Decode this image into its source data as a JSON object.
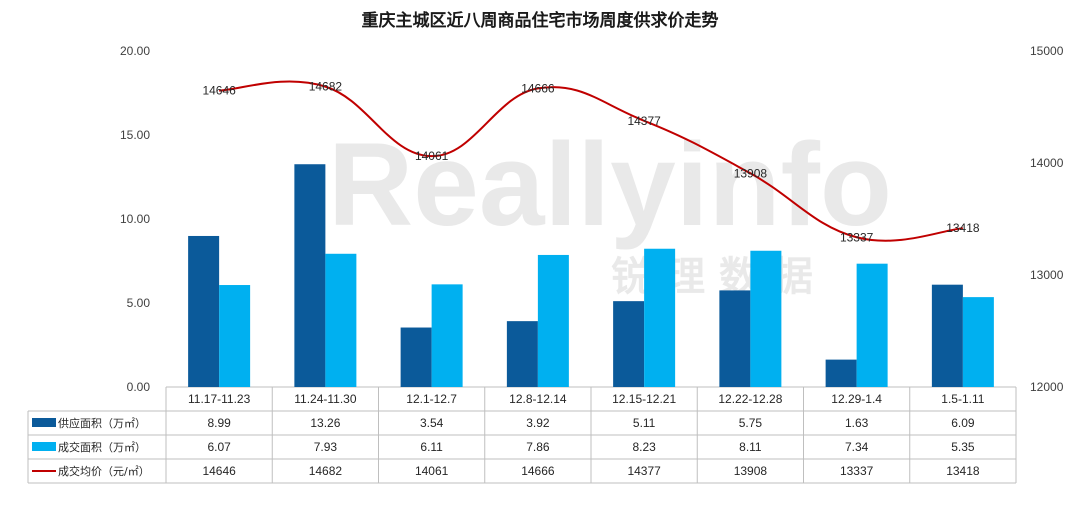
{
  "chart_data": {
    "type": "bar",
    "title": "重庆主城区近八周商品住宅市场周度供求价走势",
    "categories": [
      "11.17-11.23",
      "11.24-11.30",
      "12.1-12.7",
      "12.8-12.14",
      "12.15-12.21",
      "12.22-12.28",
      "12.29-1.4",
      "1.5-1.11"
    ],
    "series": [
      {
        "name": "供应面积（万㎡）",
        "type": "bar",
        "axis": "left",
        "color": "#0b5a9a",
        "values": [
          8.99,
          13.26,
          3.54,
          3.92,
          5.11,
          5.75,
          1.63,
          6.09
        ],
        "display": [
          "8.99",
          "13.26",
          "3.54",
          "3.92",
          "5.11",
          "5.75",
          "1.63",
          "6.09"
        ]
      },
      {
        "name": "成交面积（万㎡）",
        "type": "bar",
        "axis": "left",
        "color": "#00b0f0",
        "values": [
          6.07,
          7.93,
          6.11,
          7.86,
          8.23,
          8.11,
          7.34,
          5.35
        ],
        "display": [
          "6.07",
          "7.93",
          "6.11",
          "7.86",
          "8.23",
          "8.11",
          "7.34",
          "5.35"
        ]
      },
      {
        "name": "成交均价（元/㎡）",
        "type": "line",
        "axis": "right",
        "color": "#c00000",
        "values": [
          14646,
          14682,
          14061,
          14666,
          14377,
          13908,
          13337,
          13418
        ],
        "display": [
          "14646",
          "14682",
          "14061",
          "14666",
          "14377",
          "13908",
          "13337",
          "13418"
        ]
      }
    ],
    "y_left": {
      "min": 0,
      "max": 20,
      "ticks": [
        "0.00",
        "5.00",
        "10.00",
        "15.00",
        "20.00"
      ]
    },
    "y_right": {
      "min": 12000,
      "max": 15000,
      "ticks": [
        "12000",
        "13000",
        "14000",
        "15000"
      ]
    },
    "legend": "data-table-below",
    "grid": false
  },
  "watermark": {
    "main": "Reallyinfo",
    "sub": "锐 理 数 据"
  }
}
